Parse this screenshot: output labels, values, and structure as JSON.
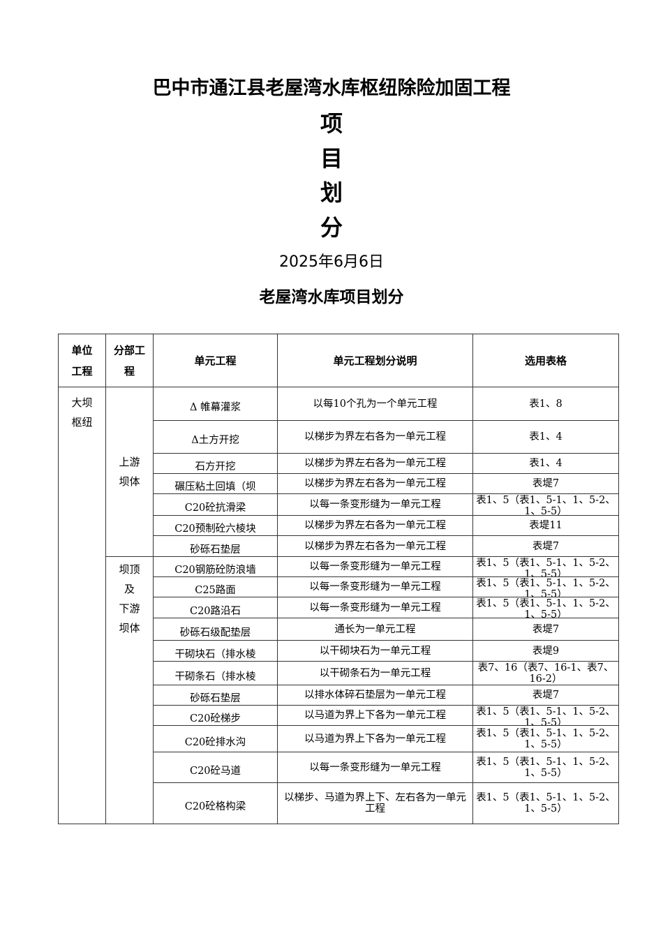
{
  "title": "巴中市通江县老屋湾水库枢纽除险加固工程",
  "big_chars": [
    "项",
    "目",
    "划",
    "分"
  ],
  "date": "2025年6月6日",
  "subtitle": "老屋湾水库项目划分",
  "table": {
    "headers": [
      "单位\n工程",
      "分部工\n程",
      "单元工程",
      "单元工程划分说明",
      "选用表格"
    ],
    "unit": "大坝\n枢纽",
    "groups": [
      {
        "name": "上游\n坝体",
        "rows": [
          {
            "unit_item": "Δ 帷幕灌浆",
            "desc": "以每10个孔为一个单元工程",
            "form": "表1、8"
          },
          {
            "unit_item": "Δ土方开挖",
            "desc": "以梯步为界左右各为一单元工程",
            "form": "表1、4"
          },
          {
            "unit_item": "石方开挖",
            "desc": "以梯步为界左右各为一单元工程",
            "form": "表1、4"
          },
          {
            "unit_item": "碾压粘土回填（坝",
            "desc": "以梯步为界左右各为一单元工程",
            "form": "表堤7"
          },
          {
            "unit_item": "C20砼抗滑梁",
            "desc": "以每一条变形缝为一单元工程",
            "form": "表1、5（表1、5-1、1、5-2、1、5-5）"
          },
          {
            "unit_item": "C20预制砼六棱块",
            "desc": "以梯步为界左右各为一单元工程",
            "form": "表堤11"
          },
          {
            "unit_item": "砂砾石垫层",
            "desc": "以梯步为界左右各为一单元工程",
            "form": "表堤7"
          }
        ]
      },
      {
        "name": "坝顶\n及\n下游\n坝体",
        "rows": [
          {
            "unit_item": "C20钢筋砼防浪墙",
            "desc": "以每一条变形缝为一单元工程",
            "form": "表1、5（表1、5-1、1、5-2、1、5-5）"
          },
          {
            "unit_item": "C25路面",
            "desc": "以每一条变形缝为一单元工程",
            "form": "表1、5（表1、5-1、1、5-2、1、5-5）"
          },
          {
            "unit_item": "C20路沿石",
            "desc": "以每一条变形缝为一单元工程",
            "form": "表1、5（表1、5-1、1、5-2、1、5-5）"
          },
          {
            "unit_item": "砂砾石级配垫层",
            "desc": "通长为一单元工程",
            "form": "表堤7"
          },
          {
            "unit_item": "干砌块石（排水棱",
            "desc": "以干砌块石为一单元工程",
            "form": "表堤9"
          },
          {
            "unit_item": "干砌条石（排水棱",
            "desc": "以干砌条石为一单元工程",
            "form": "表7、16（表7、16-1、表7、16-2）"
          },
          {
            "unit_item": "砂砾石垫层",
            "desc": "以排水体碎石垫层为一单元工程",
            "form": "表堤7"
          },
          {
            "unit_item": "C20砼梯步",
            "desc": "以马道为界上下各为一单元工程",
            "form": "表1、5（表1、5-1、1、5-2、1、5-5）"
          },
          {
            "unit_item": "C20砼排水沟",
            "desc": "以马道为界上下各为一单元工程",
            "form": "表1、5（表1、5-1、1、5-2、1、5-5）"
          },
          {
            "unit_item": "C20砼马道",
            "desc": "以每一条变形缝为一单元工程",
            "form": "表1、5（表1、5-1、1、5-2、1、5-5）"
          },
          {
            "unit_item": "C20砼格构梁",
            "desc": "以梯步、马道为界上下、左右各为一单元工程",
            "form": "表1、5（表1、5-1、1、5-2、1、5-5）"
          }
        ]
      }
    ]
  }
}
